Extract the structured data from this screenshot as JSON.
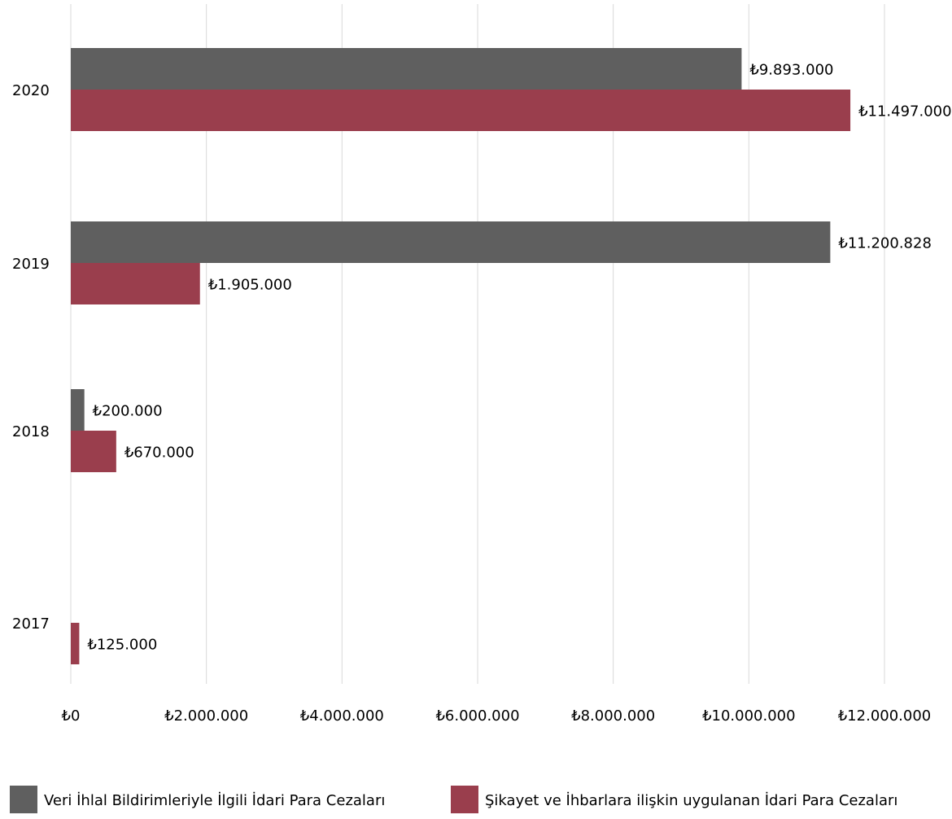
{
  "chart_data": {
    "type": "bar",
    "orientation": "horizontal",
    "categories": [
      "2020",
      "2019",
      "2018",
      "2017"
    ],
    "series": [
      {
        "name": "Veri İhlal Bildirimleriyle İlgili İdari Para Cezaları",
        "color": "#5f5f5f",
        "values": [
          9893000,
          11200828,
          200000,
          null
        ],
        "labels": [
          "₺9.893.000",
          "₺11.200.828",
          "₺200.000",
          null
        ]
      },
      {
        "name": "Şikayet ve İhbarlara ilişkin uygulanan İdari Para Cezaları",
        "color": "#9a3e4d",
        "values": [
          11497000,
          1905000,
          670000,
          125000
        ],
        "labels": [
          "₺11.497.000",
          "₺1.905.000",
          "₺670.000",
          "₺125.000"
        ]
      }
    ],
    "xlim": [
      0,
      12000000
    ],
    "xticks": [
      0,
      2000000,
      4000000,
      6000000,
      8000000,
      10000000,
      12000000
    ],
    "xtick_labels": [
      "₺0",
      "₺2.000.000",
      "₺4.000.000",
      "₺6.000.000",
      "₺8.000.000",
      "₺10.000.000",
      "₺12.000.000"
    ],
    "grid": true,
    "legend_position": "bottom",
    "title": "",
    "xlabel": "",
    "ylabel": ""
  }
}
